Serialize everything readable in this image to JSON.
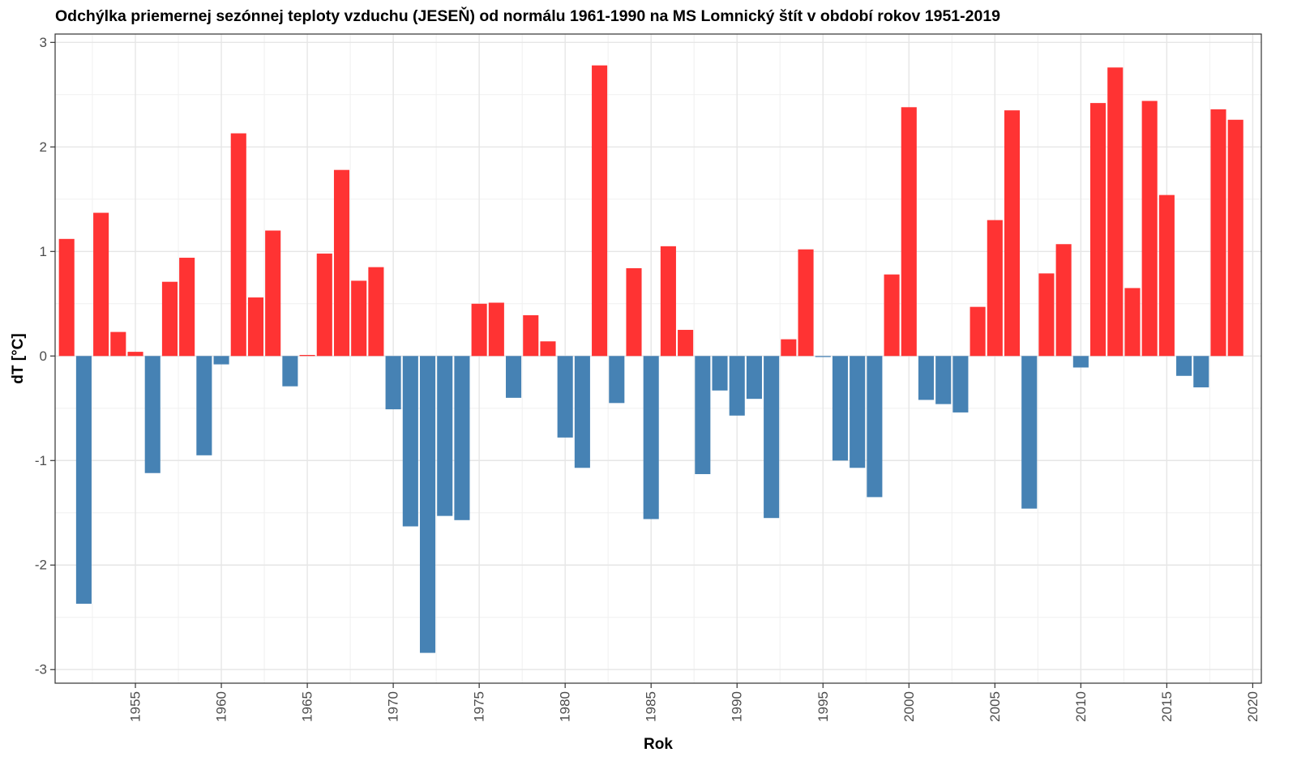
{
  "chart_data": {
    "type": "bar",
    "title": "Odchýlka priemernej sezónnej teploty vzduchu (JESEŇ) od normálu 1961-1990 na MS Lomnický štít v období rokov 1951-2019",
    "xlabel": "Rok",
    "ylabel": "dT [°C]",
    "xlim": [
      1950.33,
      2020.5
    ],
    "ylim": [
      -3.13,
      3.08
    ],
    "grid": true,
    "legend": "none",
    "x_ticks": [
      1955,
      1960,
      1965,
      1970,
      1975,
      1980,
      1985,
      1990,
      1995,
      2000,
      2005,
      2010,
      2015,
      2020
    ],
    "y_ticks": [
      -3,
      -2,
      -1,
      0,
      1,
      2,
      3
    ],
    "colors": {
      "positive": "#ff3333",
      "negative": "#4682b4"
    },
    "x": [
      1951,
      1952,
      1953,
      1954,
      1955,
      1956,
      1957,
      1958,
      1959,
      1960,
      1961,
      1962,
      1963,
      1964,
      1965,
      1966,
      1967,
      1968,
      1969,
      1970,
      1971,
      1972,
      1973,
      1974,
      1975,
      1976,
      1977,
      1978,
      1979,
      1980,
      1981,
      1982,
      1983,
      1984,
      1985,
      1986,
      1987,
      1988,
      1989,
      1990,
      1991,
      1992,
      1993,
      1994,
      1995,
      1996,
      1997,
      1998,
      1999,
      2000,
      2001,
      2002,
      2003,
      2004,
      2005,
      2006,
      2007,
      2008,
      2009,
      2010,
      2011,
      2012,
      2013,
      2014,
      2015,
      2016,
      2017,
      2018,
      2019
    ],
    "values": [
      1.12,
      -2.37,
      1.37,
      0.23,
      0.04,
      -1.12,
      0.71,
      0.94,
      -0.95,
      -0.08,
      2.13,
      0.56,
      1.2,
      -0.29,
      0.01,
      0.98,
      1.78,
      0.72,
      0.85,
      -0.51,
      -1.63,
      -2.84,
      -1.53,
      -1.57,
      0.5,
      0.51,
      -0.4,
      0.39,
      0.14,
      -0.78,
      -1.07,
      2.78,
      -0.45,
      0.84,
      -1.56,
      1.05,
      0.25,
      -1.13,
      -0.33,
      -0.57,
      -0.41,
      -1.55,
      0.16,
      1.02,
      -0.01,
      -1.0,
      -1.07,
      -1.35,
      0.78,
      2.38,
      -0.42,
      -0.46,
      -0.54,
      0.47,
      1.3,
      2.35,
      -1.46,
      0.79,
      1.07,
      -0.11,
      2.42,
      2.76,
      0.65,
      2.44,
      1.54,
      -0.19,
      -0.3,
      2.36,
      2.26
    ]
  }
}
